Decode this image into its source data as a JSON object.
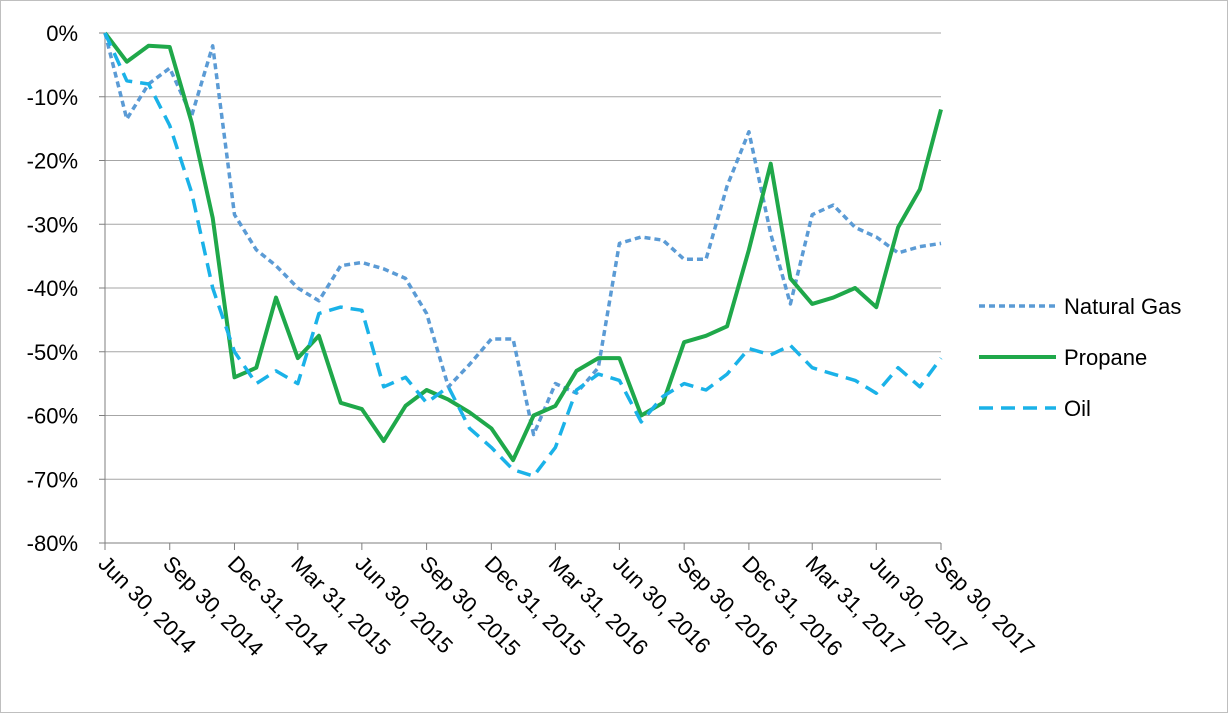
{
  "chart_data": {
    "type": "line",
    "title": "",
    "xlabel": "",
    "ylabel": "",
    "ylim": [
      -80,
      0
    ],
    "y_ticks": [
      "0%",
      "-10%",
      "-20%",
      "-30%",
      "-40%",
      "-50%",
      "-60%",
      "-70%",
      "-80%"
    ],
    "x_range": [
      "2014-06-30",
      "2017-09-30"
    ],
    "x_tick_labels": [
      "Jun 30, 2014",
      "Sep 30, 2014",
      "Dec 31, 2014",
      "Mar 31, 2015",
      "Jun 30, 2015",
      "Sep 30, 2015",
      "Dec 31, 2015",
      "Mar 31, 2016",
      "Jun 30, 2016",
      "Sep 30, 2016",
      "Dec 31, 2016",
      "Mar 31, 2017",
      "Jun 30, 2017",
      "Sep 30, 2017"
    ],
    "x_tick_dates": [
      "2014-06-30",
      "2014-09-30",
      "2014-12-31",
      "2015-03-31",
      "2015-06-30",
      "2015-09-30",
      "2015-12-31",
      "2016-03-31",
      "2016-06-30",
      "2016-09-30",
      "2016-12-31",
      "2017-03-31",
      "2017-06-30",
      "2017-09-30"
    ],
    "grid": "horizontal",
    "legend_position": "right",
    "series": [
      {
        "name": "Natural Gas",
        "color": "#5b9bd5",
        "dash": "short-dash",
        "points": [
          [
            "2014-06-30",
            0
          ],
          [
            "2014-07-31",
            -13.5
          ],
          [
            "2014-08-31",
            -8
          ],
          [
            "2014-09-30",
            -5.5
          ],
          [
            "2014-10-31",
            -13
          ],
          [
            "2014-11-30",
            -2
          ],
          [
            "2014-12-31",
            -28.5
          ],
          [
            "2015-01-31",
            -34
          ],
          [
            "2015-02-28",
            -36.5
          ],
          [
            "2015-03-31",
            -40
          ],
          [
            "2015-04-30",
            -42
          ],
          [
            "2015-05-31",
            -36.5
          ],
          [
            "2015-06-30",
            -36
          ],
          [
            "2015-07-31",
            -37
          ],
          [
            "2015-08-31",
            -38.5
          ],
          [
            "2015-09-30",
            -44
          ],
          [
            "2015-10-31",
            -55.5
          ],
          [
            "2015-11-30",
            -52
          ],
          [
            "2015-12-31",
            -48
          ],
          [
            "2016-01-31",
            -48
          ],
          [
            "2016-02-29",
            -63
          ],
          [
            "2016-03-31",
            -55
          ],
          [
            "2016-04-30",
            -56.5
          ],
          [
            "2016-05-31",
            -52.5
          ],
          [
            "2016-06-30",
            -33
          ],
          [
            "2016-07-31",
            -32
          ],
          [
            "2016-08-31",
            -32.5
          ],
          [
            "2016-09-30",
            -35.5
          ],
          [
            "2016-10-31",
            -35.5
          ],
          [
            "2016-11-30",
            -24
          ],
          [
            "2016-12-31",
            -15.5
          ],
          [
            "2017-01-31",
            -31.5
          ],
          [
            "2017-02-28",
            -42.5
          ],
          [
            "2017-03-31",
            -28.5
          ],
          [
            "2017-04-30",
            -27
          ],
          [
            "2017-05-31",
            -30.5
          ],
          [
            "2017-06-30",
            -32
          ],
          [
            "2017-07-31",
            -34.5
          ],
          [
            "2017-08-31",
            -33.5
          ],
          [
            "2017-09-30",
            -33
          ]
        ]
      },
      {
        "name": "Propane",
        "color": "#1fa84a",
        "dash": "solid",
        "points": [
          [
            "2014-06-30",
            0
          ],
          [
            "2014-07-31",
            -4.5
          ],
          [
            "2014-08-31",
            -2
          ],
          [
            "2014-09-30",
            -2.2
          ],
          [
            "2014-10-31",
            -14
          ],
          [
            "2014-11-30",
            -29
          ],
          [
            "2014-12-31",
            -54
          ],
          [
            "2015-01-31",
            -52.5
          ],
          [
            "2015-02-28",
            -41.5
          ],
          [
            "2015-03-31",
            -51
          ],
          [
            "2015-04-30",
            -47.5
          ],
          [
            "2015-05-31",
            -58
          ],
          [
            "2015-06-30",
            -59
          ],
          [
            "2015-07-31",
            -64
          ],
          [
            "2015-08-31",
            -58.5
          ],
          [
            "2015-09-30",
            -56
          ],
          [
            "2015-10-31",
            -57.5
          ],
          [
            "2015-11-30",
            -59.5
          ],
          [
            "2015-12-31",
            -62
          ],
          [
            "2016-01-31",
            -67
          ],
          [
            "2016-02-29",
            -60
          ],
          [
            "2016-03-31",
            -58.5
          ],
          [
            "2016-04-30",
            -53
          ],
          [
            "2016-05-31",
            -51
          ],
          [
            "2016-06-30",
            -51
          ],
          [
            "2016-07-31",
            -60
          ],
          [
            "2016-08-31",
            -58
          ],
          [
            "2016-09-30",
            -48.5
          ],
          [
            "2016-10-31",
            -47.5
          ],
          [
            "2016-11-30",
            -46
          ],
          [
            "2016-12-31",
            -34
          ],
          [
            "2017-01-31",
            -20.5
          ],
          [
            "2017-02-28",
            -38.5
          ],
          [
            "2017-03-31",
            -42.5
          ],
          [
            "2017-04-30",
            -41.5
          ],
          [
            "2017-05-31",
            -40
          ],
          [
            "2017-06-30",
            -43
          ],
          [
            "2017-07-31",
            -30.5
          ],
          [
            "2017-08-31",
            -24.5
          ],
          [
            "2017-09-30",
            -12
          ]
        ]
      },
      {
        "name": "Oil",
        "color": "#1ab2e8",
        "dash": "long-dash",
        "points": [
          [
            "2014-06-30",
            0
          ],
          [
            "2014-07-31",
            -7.5
          ],
          [
            "2014-08-31",
            -8
          ],
          [
            "2014-09-30",
            -14.5
          ],
          [
            "2014-10-31",
            -25
          ],
          [
            "2014-11-30",
            -40
          ],
          [
            "2014-12-31",
            -50
          ],
          [
            "2015-01-31",
            -55
          ],
          [
            "2015-02-28",
            -53
          ],
          [
            "2015-03-31",
            -55
          ],
          [
            "2015-04-30",
            -44
          ],
          [
            "2015-05-31",
            -43
          ],
          [
            "2015-06-30",
            -43.5
          ],
          [
            "2015-07-31",
            -55.5
          ],
          [
            "2015-08-31",
            -54
          ],
          [
            "2015-09-30",
            -58
          ],
          [
            "2015-10-31",
            -55.5
          ],
          [
            "2015-11-30",
            -62
          ],
          [
            "2015-12-31",
            -65
          ],
          [
            "2016-01-31",
            -68.5
          ],
          [
            "2016-02-29",
            -69.5
          ],
          [
            "2016-03-31",
            -65
          ],
          [
            "2016-04-30",
            -56
          ],
          [
            "2016-05-31",
            -53.5
          ],
          [
            "2016-06-30",
            -54.5
          ],
          [
            "2016-07-31",
            -61
          ],
          [
            "2016-08-31",
            -57
          ],
          [
            "2016-09-30",
            -55
          ],
          [
            "2016-10-31",
            -56
          ],
          [
            "2016-11-30",
            -53.5
          ],
          [
            "2016-12-31",
            -49.5
          ],
          [
            "2017-01-31",
            -50.5
          ],
          [
            "2017-02-28",
            -49
          ],
          [
            "2017-03-31",
            -52.5
          ],
          [
            "2017-04-30",
            -53.5
          ],
          [
            "2017-05-31",
            -54.5
          ],
          [
            "2017-06-30",
            -56.5
          ],
          [
            "2017-07-31",
            -52.5
          ],
          [
            "2017-08-31",
            -55.5
          ],
          [
            "2017-09-30",
            -51
          ]
        ]
      }
    ]
  }
}
